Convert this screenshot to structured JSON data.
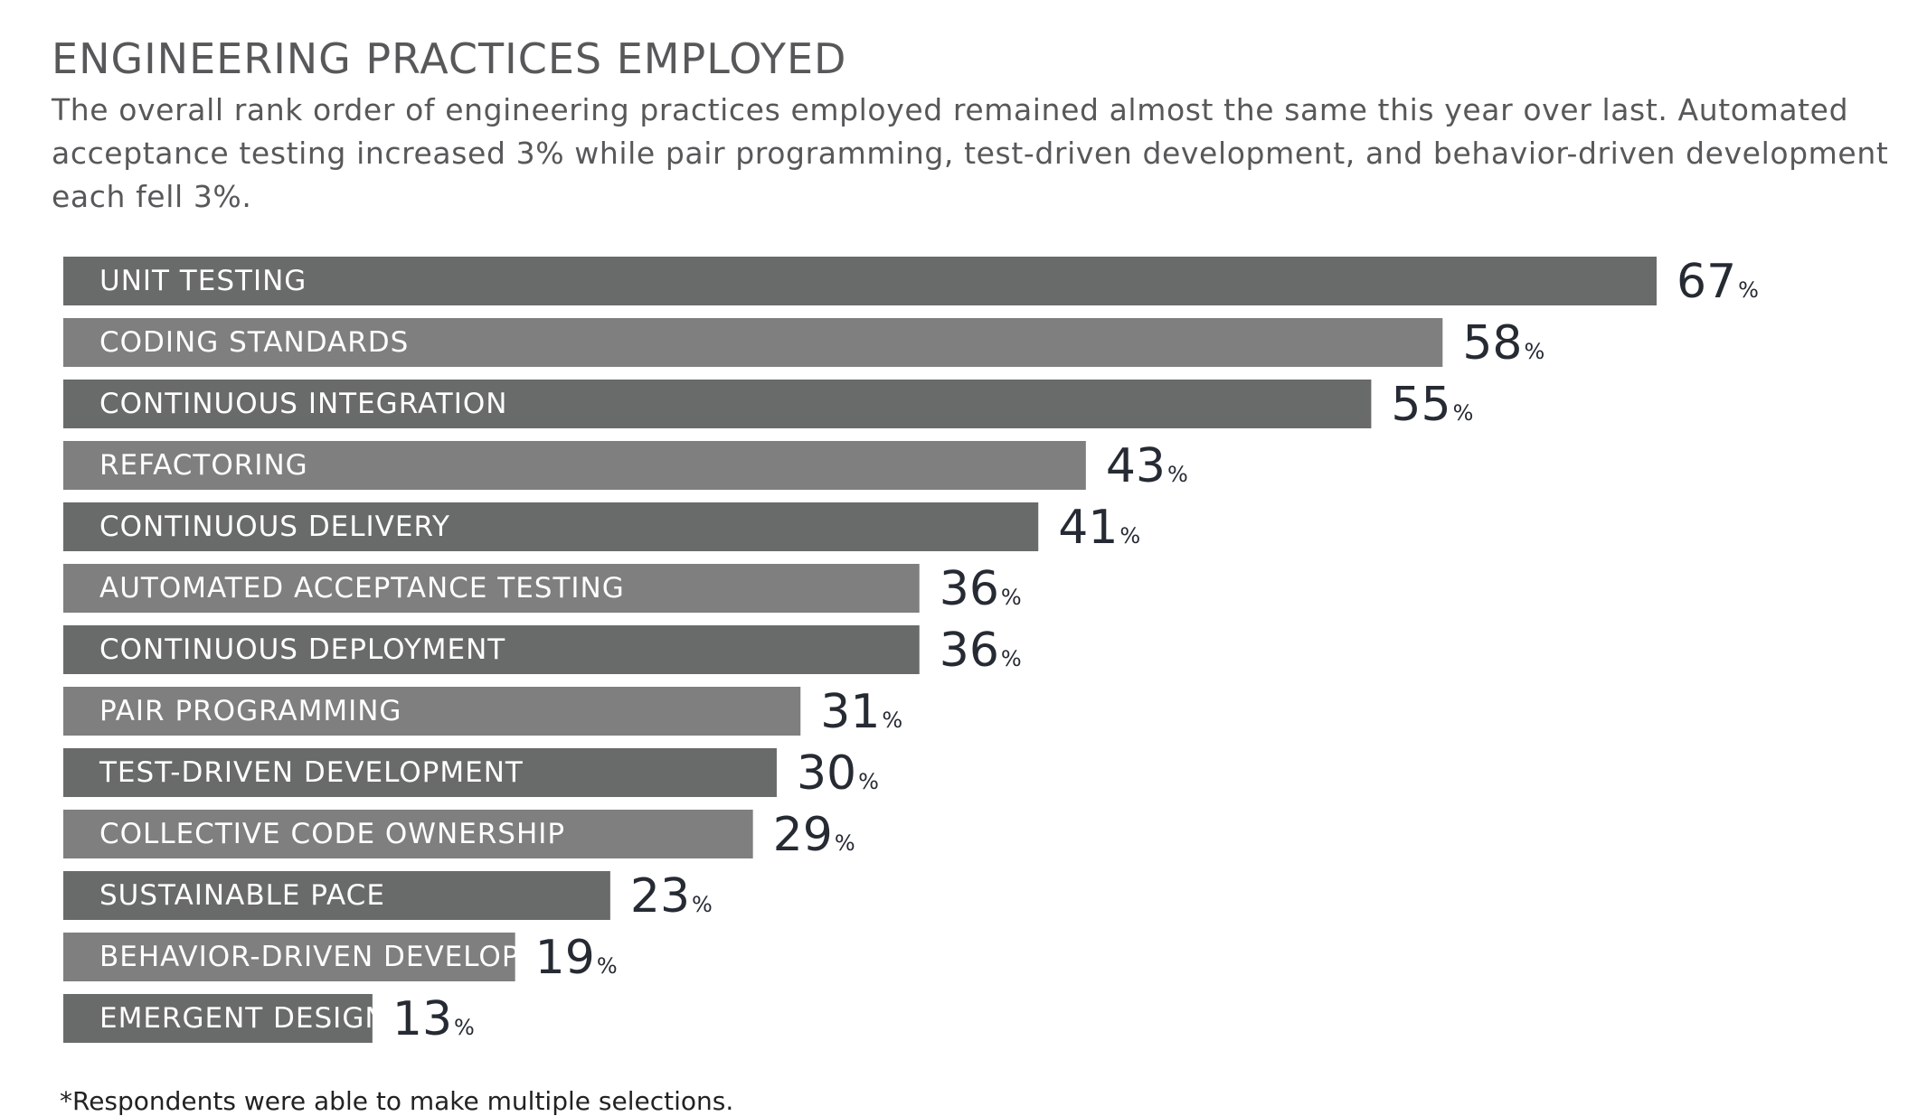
{
  "header": {
    "title": "ENGINEERING PRACTICES EMPLOYED",
    "subtitle": "The overall rank order of engineering practices employed remained almost the same this year over last. Automated acceptance testing increased 3% while pair programming, test-driven development, and behavior-driven development each fell 3%."
  },
  "footnote": "*Respondents were able to make multiple selections.",
  "chart_data": {
    "type": "bar",
    "orientation": "horizontal",
    "title": "ENGINEERING PRACTICES EMPLOYED",
    "xlabel": "",
    "ylabel": "",
    "value_suffix": "%",
    "xlim": [
      0,
      67
    ],
    "grid": false,
    "legend": "none",
    "categories": [
      "UNIT TESTING",
      "CODING STANDARDS",
      "CONTINUOUS INTEGRATION",
      "REFACTORING",
      "CONTINUOUS DELIVERY",
      "AUTOMATED ACCEPTANCE TESTING",
      "CONTINUOUS DEPLOYMENT",
      "PAIR PROGRAMMING",
      "TEST-DRIVEN DEVELOPMENT",
      "COLLECTIVE CODE OWNERSHIP",
      "SUSTAINABLE PACE",
      "BEHAVIOR-DRIVEN  DEVELOPMENT (BDD)",
      "EMERGENT DESIGN"
    ],
    "values": [
      67,
      58,
      55,
      43,
      41,
      36,
      36,
      31,
      30,
      29,
      23,
      19,
      13
    ],
    "colors": {
      "bar_dark": "#696a6a",
      "bar_light": "#7f7f7f",
      "label_text": "#ffffff",
      "value_text": "#262a33"
    }
  }
}
